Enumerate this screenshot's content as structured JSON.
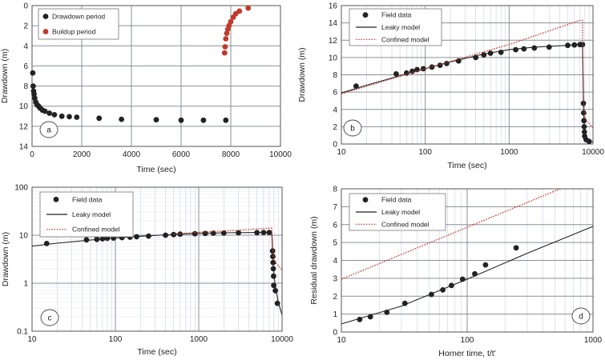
{
  "chart_data": [
    {
      "id": "a",
      "type": "scatter",
      "panel_label": "a",
      "xlabel": "Time (sec)",
      "ylabel": "Drawdown (m)",
      "xlim": [
        0,
        10000
      ],
      "ylim": [
        0,
        14
      ],
      "y_inverted": true,
      "x_scale": "linear",
      "y_scale": "linear",
      "xticks": [
        0,
        2000,
        4000,
        6000,
        8000,
        10000
      ],
      "yticks": [
        0,
        2,
        4,
        6,
        8,
        10,
        12,
        14
      ],
      "grid": "major",
      "legend": "top-left",
      "series": [
        {
          "name": "Drawdown period",
          "color": "#222222",
          "marker": "circle",
          "points": [
            [
              30,
              6.7
            ],
            [
              45,
              8.0
            ],
            [
              60,
              8.5
            ],
            [
              80,
              8.8
            ],
            [
              110,
              9.2
            ],
            [
              150,
              9.6
            ],
            [
              200,
              9.85
            ],
            [
              260,
              10.0
            ],
            [
              330,
              10.2
            ],
            [
              420,
              10.4
            ],
            [
              520,
              10.5
            ],
            [
              700,
              10.7
            ],
            [
              900,
              10.85
            ],
            [
              1200,
              11.0
            ],
            [
              1500,
              11.05
            ],
            [
              1800,
              11.1
            ],
            [
              2700,
              11.2
            ],
            [
              3600,
              11.3
            ],
            [
              5000,
              11.35
            ],
            [
              6000,
              11.4
            ],
            [
              6900,
              11.4
            ],
            [
              7800,
              11.4
            ]
          ]
        },
        {
          "name": "Buildup period",
          "color": "#c0392b",
          "marker": "circle",
          "points": [
            [
              7750,
              4.7
            ],
            [
              7770,
              4.1
            ],
            [
              7800,
              3.3
            ],
            [
              7840,
              2.75
            ],
            [
              7880,
              2.35
            ],
            [
              7930,
              2.0
            ],
            [
              8000,
              1.6
            ],
            [
              8100,
              1.15
            ],
            [
              8200,
              0.8
            ],
            [
              8350,
              0.55
            ],
            [
              8700,
              0.25
            ]
          ]
        }
      ]
    },
    {
      "id": "b",
      "type": "line",
      "panel_label": "b",
      "xlabel": "Time (sec)",
      "ylabel": "Drawdown (m)",
      "xlim": [
        10,
        10000
      ],
      "ylim": [
        0,
        16
      ],
      "x_scale": "log",
      "y_scale": "linear",
      "xticks": [
        10,
        100,
        1000,
        10000
      ],
      "yticks": [
        0,
        2,
        4,
        6,
        8,
        10,
        12,
        14,
        16
      ],
      "grid": "major+minor-x",
      "legend": "top-left",
      "series": [
        {
          "name": "Field data",
          "style": "points",
          "color": "#222222",
          "points": [
            [
              15,
              6.7
            ],
            [
              45,
              8.1
            ],
            [
              60,
              8.2
            ],
            [
              70,
              8.4
            ],
            [
              80,
              8.6
            ],
            [
              95,
              8.7
            ],
            [
              120,
              8.9
            ],
            [
              150,
              9.1
            ],
            [
              180,
              9.3
            ],
            [
              250,
              9.6
            ],
            [
              400,
              10.0
            ],
            [
              500,
              10.3
            ],
            [
              600,
              10.5
            ],
            [
              800,
              10.6
            ],
            [
              1200,
              10.9
            ],
            [
              1500,
              11.0
            ],
            [
              2000,
              11.1
            ],
            [
              3000,
              11.2
            ],
            [
              5000,
              11.4
            ],
            [
              6000,
              11.45
            ],
            [
              7000,
              11.5
            ],
            [
              7500,
              11.5
            ],
            [
              7700,
              4.7
            ],
            [
              7750,
              3.6
            ],
            [
              7800,
              2.7
            ],
            [
              7850,
              2.0
            ],
            [
              7900,
              1.4
            ],
            [
              7950,
              0.9
            ],
            [
              8300,
              0.5
            ],
            [
              9000,
              0.3
            ]
          ]
        },
        {
          "name": "Leaky model",
          "style": "solid",
          "color": "#222222",
          "points": [
            [
              10,
              5.9
            ],
            [
              20,
              6.8
            ],
            [
              50,
              7.9
            ],
            [
              100,
              8.7
            ],
            [
              200,
              9.5
            ],
            [
              500,
              10.4
            ],
            [
              1000,
              10.9
            ],
            [
              2000,
              11.2
            ],
            [
              5000,
              11.4
            ],
            [
              7000,
              11.5
            ],
            [
              7500,
              11.5
            ],
            [
              7600,
              8.0
            ],
            [
              7700,
              4.5
            ],
            [
              7800,
              3.0
            ],
            [
              7900,
              2.0
            ],
            [
              8100,
              1.2
            ],
            [
              8500,
              0.7
            ],
            [
              9000,
              0.4
            ],
            [
              10000,
              0.2
            ]
          ]
        },
        {
          "name": "Confined model",
          "style": "dotted",
          "color": "#c0392b",
          "points": [
            [
              10,
              5.8
            ],
            [
              100,
              8.7
            ],
            [
              1000,
              11.5
            ],
            [
              7000,
              14.3
            ],
            [
              7500,
              14.3
            ],
            [
              7600,
              9.0
            ],
            [
              7700,
              6.0
            ],
            [
              7800,
              4.5
            ],
            [
              8000,
              3.2
            ],
            [
              8500,
              2.6
            ],
            [
              10000,
              1.9
            ]
          ]
        }
      ]
    },
    {
      "id": "c",
      "type": "line",
      "panel_label": "c",
      "xlabel": "Time (sec)",
      "ylabel": "Drawdown (m)",
      "xlim": [
        10,
        10000
      ],
      "ylim": [
        0.1,
        100
      ],
      "x_scale": "log",
      "y_scale": "log",
      "xticks": [
        10,
        100,
        1000,
        10000
      ],
      "yticks": [
        0.1,
        1,
        10,
        100
      ],
      "grid": "major+minor-x",
      "legend": "top-left",
      "series": [
        {
          "name": "Field data",
          "style": "points",
          "color": "#222222",
          "points": [
            [
              15,
              6.7
            ],
            [
              45,
              8.0
            ],
            [
              60,
              8.2
            ],
            [
              70,
              8.4
            ],
            [
              80,
              8.6
            ],
            [
              95,
              8.7
            ],
            [
              120,
              8.9
            ],
            [
              150,
              9.1
            ],
            [
              180,
              9.3
            ],
            [
              250,
              9.6
            ],
            [
              400,
              10.0
            ],
            [
              500,
              10.3
            ],
            [
              600,
              10.5
            ],
            [
              900,
              10.7
            ],
            [
              1200,
              10.9
            ],
            [
              1500,
              11.0
            ],
            [
              2000,
              11.1
            ],
            [
              3000,
              11.2
            ],
            [
              5000,
              11.3
            ],
            [
              6000,
              11.4
            ],
            [
              7000,
              11.4
            ],
            [
              7700,
              4.7
            ],
            [
              7750,
              3.6
            ],
            [
              7800,
              2.7
            ],
            [
              7850,
              2.0
            ],
            [
              7900,
              1.4
            ],
            [
              7950,
              0.9
            ],
            [
              8300,
              0.7
            ],
            [
              8800,
              0.38
            ]
          ]
        },
        {
          "name": "Leaky model",
          "style": "solid",
          "color": "#222222",
          "points": [
            [
              10,
              5.9
            ],
            [
              20,
              6.8
            ],
            [
              50,
              7.9
            ],
            [
              100,
              8.7
            ],
            [
              200,
              9.5
            ],
            [
              500,
              10.4
            ],
            [
              1000,
              10.9
            ],
            [
              2000,
              11.2
            ],
            [
              5000,
              11.4
            ],
            [
              7000,
              11.5
            ],
            [
              7500,
              11.5
            ],
            [
              7600,
              8.0
            ],
            [
              7700,
              4.5
            ],
            [
              7800,
              3.0
            ],
            [
              7900,
              2.0
            ],
            [
              8100,
              1.2
            ],
            [
              8500,
              0.7
            ],
            [
              9000,
              0.4
            ],
            [
              10000,
              0.22
            ]
          ]
        },
        {
          "name": "Confined model",
          "style": "dotted",
          "color": "#c0392b",
          "points": [
            [
              500,
              10.6
            ],
            [
              1000,
              11.5
            ],
            [
              3000,
              12.7
            ],
            [
              7000,
              14.0
            ],
            [
              7500,
              14.0
            ],
            [
              7700,
              6.0
            ],
            [
              7800,
              4.5
            ],
            [
              8000,
              3.2
            ],
            [
              8500,
              2.6
            ],
            [
              10000,
              1.9
            ]
          ]
        }
      ]
    },
    {
      "id": "d",
      "type": "line",
      "panel_label": "d",
      "xlabel": "Horner time, t/t'",
      "ylabel": "Residual drawdown (m)",
      "xlim": [
        10,
        1000
      ],
      "ylim": [
        0,
        8
      ],
      "x_scale": "log",
      "y_scale": "linear",
      "xticks": [
        10,
        100,
        1000
      ],
      "yticks": [
        0,
        1,
        2,
        3,
        4,
        5,
        6,
        7,
        8
      ],
      "grid": "major+minor-x",
      "legend": "top-left",
      "series": [
        {
          "name": "Field data",
          "style": "points",
          "color": "#222222",
          "points": [
            [
              14,
              0.7
            ],
            [
              17,
              0.85
            ],
            [
              23,
              1.1
            ],
            [
              32,
              1.6
            ],
            [
              52,
              2.1
            ],
            [
              64,
              2.35
            ],
            [
              75,
              2.6
            ],
            [
              92,
              2.95
            ],
            [
              115,
              3.25
            ],
            [
              140,
              3.75
            ],
            [
              245,
              4.7
            ]
          ]
        },
        {
          "name": "Leaky model",
          "style": "solid",
          "color": "#222222",
          "points": [
            [
              10,
              0.45
            ],
            [
              30,
              1.45
            ],
            [
              100,
              2.95
            ],
            [
              300,
              4.4
            ],
            [
              1000,
              5.9
            ]
          ]
        },
        {
          "name": "Confined model",
          "style": "dotted",
          "color": "#c0392b",
          "points": [
            [
              10,
              2.95
            ],
            [
              100,
              5.85
            ],
            [
              550,
              8.0
            ]
          ]
        }
      ]
    }
  ]
}
